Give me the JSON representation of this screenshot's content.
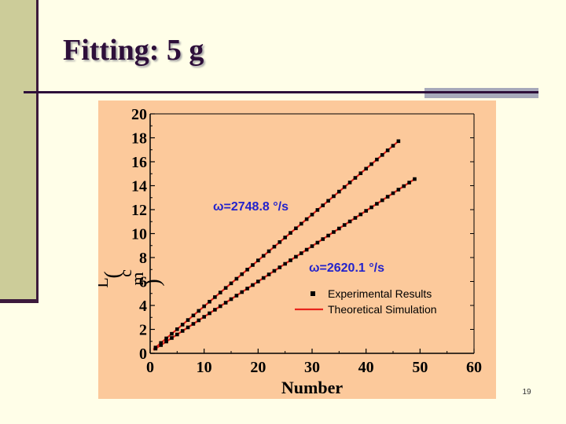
{
  "slide": {
    "title": "Fitting: 5 g",
    "number": "19"
  },
  "chart_data": {
    "type": "line",
    "title": "",
    "xlabel": "Number",
    "ylabel": "L(cm)",
    "ylabel_glyphs": [
      "L",
      "(",
      "c",
      "m",
      ")"
    ],
    "xlim": [
      0,
      60
    ],
    "ylim": [
      0,
      20
    ],
    "x_ticks": [
      0,
      10,
      20,
      30,
      40,
      50,
      60
    ],
    "y_ticks": [
      0,
      2,
      4,
      6,
      8,
      10,
      12,
      14,
      16,
      18,
      20
    ],
    "grid": false,
    "legend_position": "bottom-right",
    "legend": [
      {
        "label": "Experimental Results",
        "marker": "square",
        "color": "#000000"
      },
      {
        "label": "Theoretical Simulation",
        "marker": "line",
        "color": "#e8251c"
      }
    ],
    "annotations": [
      {
        "text": "ω=2748.8 °/s",
        "series": "ω=2748.8"
      },
      {
        "text": "ω=2620.1 °/s",
        "series": "ω=2620.1"
      }
    ],
    "series": [
      {
        "name": "ω=2748.8",
        "slope": 0.383,
        "intercept": 0.1,
        "x_start": 1,
        "x_end": 46,
        "marker_step": 1,
        "line_color": "#e8251c",
        "marker_color": "#000000"
      },
      {
        "name": "ω=2620.1",
        "slope": 0.295,
        "intercept": 0.1,
        "x_start": 1,
        "x_end": 49,
        "marker_step": 1,
        "line_color": "#e8251c",
        "marker_color": "#000000"
      }
    ],
    "colors": {
      "background": "#fcc99b",
      "axis": "#000000",
      "fit_line": "#e8251c",
      "marker": "#000000"
    }
  }
}
